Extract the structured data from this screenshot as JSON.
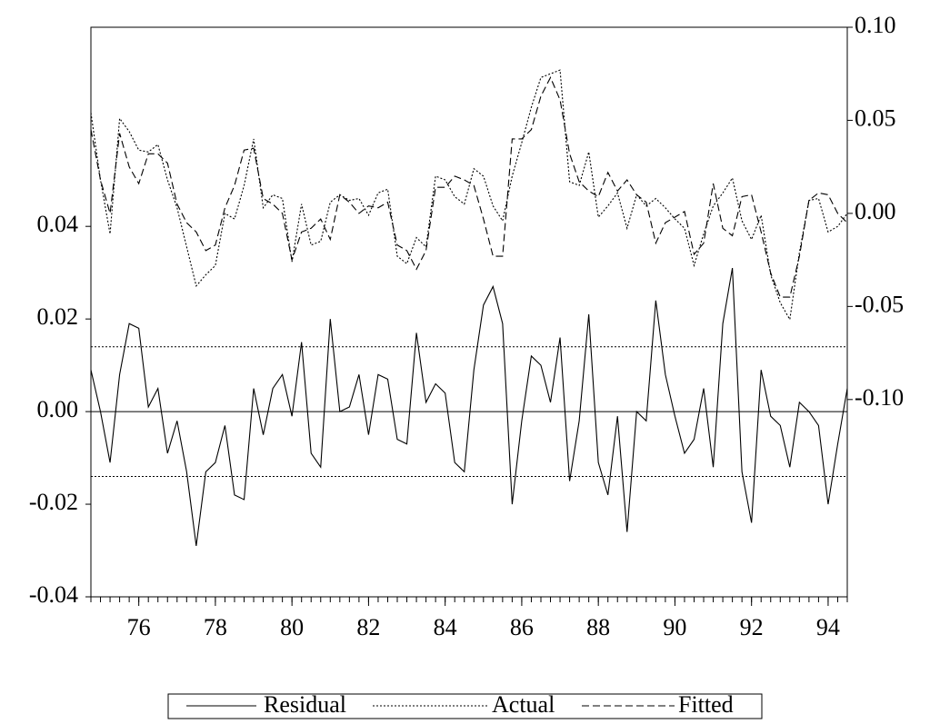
{
  "chart_data": {
    "type": "line",
    "x": [
      74.75,
      75,
      75.25,
      75.5,
      75.75,
      76,
      76.25,
      76.5,
      76.75,
      77,
      77.25,
      77.5,
      77.75,
      78,
      78.25,
      78.5,
      78.75,
      79,
      79.25,
      79.5,
      79.75,
      80,
      80.25,
      80.5,
      80.75,
      81,
      81.25,
      81.5,
      81.75,
      82,
      82.25,
      82.5,
      82.75,
      83,
      83.25,
      83.5,
      83.75,
      84,
      84.25,
      84.5,
      84.75,
      85,
      85.25,
      85.5,
      85.75,
      86,
      86.25,
      86.5,
      86.75,
      87,
      87.25,
      87.5,
      87.75,
      88,
      88.25,
      88.5,
      88.75,
      89,
      89.25,
      89.5,
      89.75,
      90,
      90.25,
      90.5,
      90.75,
      91,
      91.25,
      91.5,
      91.75,
      92,
      92.25,
      92.5,
      92.75,
      93,
      93.25,
      93.5,
      93.75,
      94,
      94.25,
      94.5
    ],
    "xlim": [
      74.75,
      94.5
    ],
    "xticks": [
      76,
      78,
      80,
      82,
      84,
      86,
      88,
      90,
      92,
      94
    ],
    "ylim": [
      -0.04,
      0.083
    ],
    "yticks": [
      -0.04,
      -0.02,
      {
        "value": 0,
        "label": "0.00"
      },
      0.02,
      0.04
    ],
    "y2lim": [
      -0.206,
      0.1
    ],
    "y2ticks": [
      {
        "value": -0.1,
        "label": "-0.10"
      },
      -0.05,
      {
        "value": 0,
        "label": "0.00"
      },
      0.05,
      {
        "value": 0.1,
        "label": "0.10"
      }
    ],
    "hlines": [
      {
        "value": 0.014,
        "style": "dotted"
      },
      {
        "value": 0,
        "style": "solid"
      },
      {
        "value": -0.014,
        "style": "dotted"
      }
    ],
    "series": [
      {
        "name": "Residual",
        "color": "#000000",
        "dash": "solid",
        "values": [
          0.009,
          0.0,
          -0.011,
          0.008,
          0.019,
          0.018,
          0.001,
          0.005,
          -0.009,
          -0.002,
          -0.013,
          -0.029,
          -0.013,
          -0.011,
          -0.003,
          -0.018,
          -0.019,
          0.005,
          -0.005,
          0.005,
          0.008,
          -0.001,
          0.015,
          -0.009,
          -0.012,
          0.02,
          0.0,
          0.001,
          0.008,
          -0.005,
          0.008,
          0.007,
          -0.006,
          -0.007,
          0.017,
          0.002,
          0.006,
          0.004,
          -0.011,
          -0.013,
          0.009,
          0.023,
          0.027,
          0.019,
          -0.02,
          -0.002,
          0.012,
          0.01,
          0.002,
          0.016,
          -0.015,
          -0.002,
          0.021,
          -0.011,
          -0.018,
          -0.001,
          -0.026,
          0.0,
          -0.002,
          0.024,
          0.008,
          -0.001,
          -0.009,
          -0.006,
          0.005,
          -0.012,
          0.019,
          0.031,
          -0.013,
          -0.024,
          0.009,
          -0.001,
          -0.003,
          -0.012,
          0.002,
          0.0,
          -0.003,
          -0.02,
          -0.007,
          0.005
        ]
      },
      {
        "name": "Actual",
        "color": "#000000",
        "dash": "dotted",
        "axis": "y2",
        "values": [
          0.054,
          0.018,
          -0.011,
          0.051,
          0.044,
          0.034,
          0.033,
          0.037,
          0.018,
          0.003,
          -0.018,
          -0.039,
          -0.033,
          -0.028,
          0.0,
          -0.003,
          0.015,
          0.04,
          0.003,
          0.01,
          0.008,
          -0.026,
          0.005,
          -0.017,
          -0.015,
          0.006,
          0.01,
          0.007,
          0.008,
          -0.001,
          0.011,
          0.013,
          -0.023,
          -0.027,
          -0.013,
          -0.018,
          0.02,
          0.018,
          0.009,
          0.005,
          0.024,
          0.02,
          0.004,
          -0.004,
          0.02,
          0.038,
          0.057,
          0.073,
          0.075,
          0.077,
          0.017,
          0.015,
          0.033,
          -0.002,
          0.004,
          0.011,
          -0.008,
          0.01,
          0.004,
          0.008,
          0.003,
          -0.003,
          -0.008,
          -0.028,
          -0.011,
          0.004,
          0.011,
          0.019,
          -0.004,
          -0.014,
          -0.001,
          -0.033,
          -0.048,
          -0.057,
          -0.021,
          0.007,
          0.008,
          -0.01,
          -0.007,
          0.0
        ]
      },
      {
        "name": "Fitted",
        "color": "#000000",
        "dash": "dashed",
        "axis": "y2",
        "values": [
          0.045,
          0.018,
          0.0,
          0.043,
          0.025,
          0.016,
          0.032,
          0.032,
          0.027,
          0.005,
          -0.005,
          -0.01,
          -0.02,
          -0.017,
          0.003,
          0.015,
          0.034,
          0.035,
          0.008,
          0.005,
          0.0,
          -0.025,
          -0.01,
          -0.008,
          -0.003,
          -0.014,
          0.01,
          0.006,
          0.0,
          0.004,
          0.003,
          0.006,
          -0.017,
          -0.02,
          -0.03,
          -0.02,
          0.014,
          0.014,
          0.02,
          0.018,
          0.015,
          -0.003,
          -0.023,
          -0.023,
          0.04,
          0.04,
          0.045,
          0.063,
          0.073,
          0.061,
          0.032,
          0.017,
          0.012,
          0.009,
          0.022,
          0.012,
          0.018,
          0.01,
          0.006,
          -0.016,
          -0.005,
          -0.002,
          0.001,
          -0.022,
          -0.016,
          0.016,
          -0.008,
          -0.012,
          0.009,
          0.01,
          -0.01,
          -0.032,
          -0.045,
          -0.045,
          -0.023,
          0.007,
          0.011,
          0.01,
          0.0,
          -0.005
        ]
      }
    ]
  }
}
